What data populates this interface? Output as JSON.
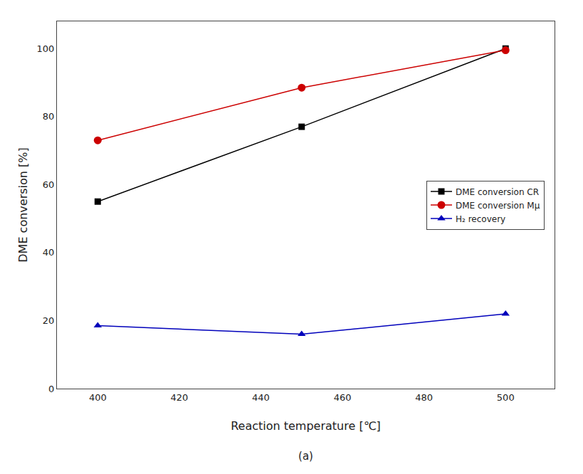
{
  "chart_data": {
    "type": "line",
    "title": "(a)",
    "x_label": "Reaction temperature [℃]",
    "y_label": "DME conversion [%]",
    "x": [
      400,
      450,
      500
    ],
    "series": [
      {
        "name": "DME conversion CR",
        "color": "#000000",
        "marker": "square",
        "line_style": "solid",
        "values": [
          55,
          77,
          100
        ]
      },
      {
        "name": "DME conversion Mμ",
        "color": "#cc0000",
        "marker": "circle",
        "line_style": "solid",
        "values": [
          73,
          88.5,
          99.5
        ]
      },
      {
        "name": "H₂ recovery",
        "color": "#0000bb",
        "marker": "triangle-up",
        "line_style": "solid",
        "values": [
          18.5,
          16,
          22
        ]
      }
    ],
    "xlim": [
      390,
      512
    ],
    "ylim": [
      0,
      108
    ],
    "xticks": [
      400,
      420,
      440,
      460,
      480,
      500
    ],
    "yticks": [
      0,
      20,
      40,
      60,
      80,
      100
    ],
    "grid": false,
    "legend": "center right"
  }
}
